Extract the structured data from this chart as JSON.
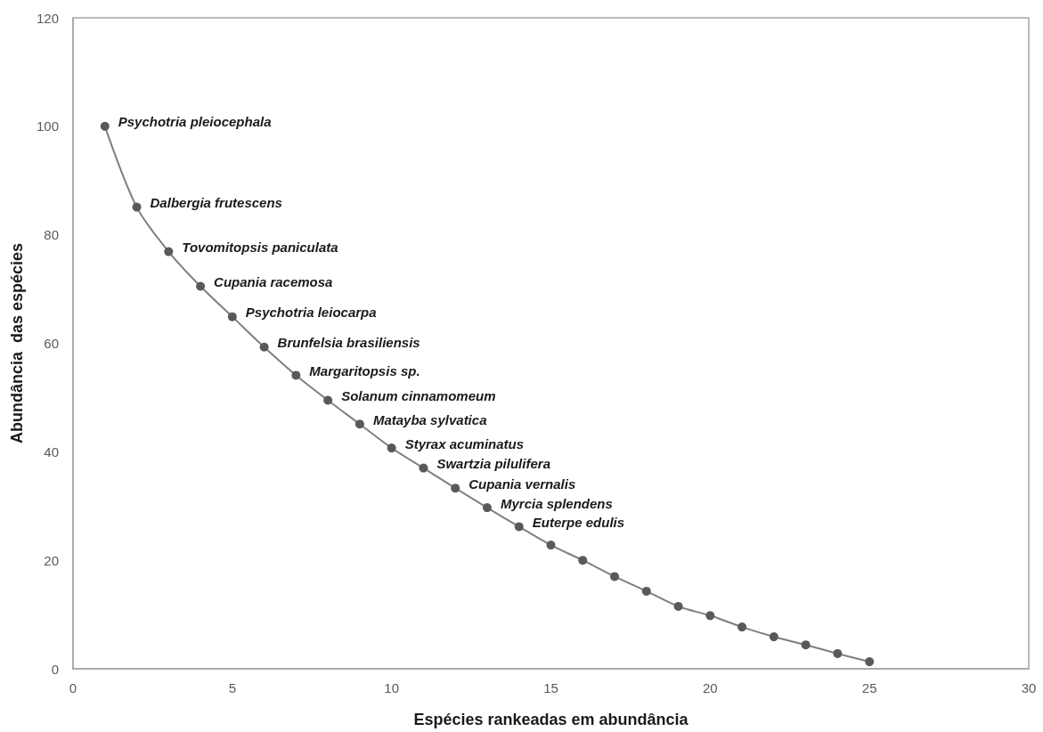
{
  "chart_data": {
    "type": "line",
    "xlabel": "Espécies rankeadas em abundância",
    "ylabel": "Abundância  das espécies",
    "x": [
      1,
      2,
      3,
      4,
      5,
      6,
      7,
      8,
      9,
      10,
      11,
      12,
      13,
      14,
      15,
      16,
      17,
      18,
      19,
      20,
      21,
      22,
      23,
      24,
      25
    ],
    "series": [
      {
        "color": "#595959",
        "values": [
          100,
          85.1,
          76.9,
          70.5,
          64.9,
          59.3,
          54.1,
          49.5,
          45.1,
          40.7,
          37,
          33.3,
          29.7,
          26.2,
          22.8,
          20,
          17,
          14.3,
          11.5,
          9.8,
          7.7,
          5.9,
          4.4,
          2.8,
          1.3
        ]
      }
    ],
    "xlim": [
      0,
      30
    ],
    "xticks": [
      0,
      5,
      10,
      15,
      20,
      25,
      30
    ],
    "ylim": [
      0,
      120
    ],
    "yticks": [
      0,
      20,
      40,
      60,
      80,
      100,
      120
    ],
    "grid": false,
    "marker": "circle",
    "line_style": "solid",
    "annotations": [
      {
        "text": "Psychotria pleiocephala",
        "x": 1,
        "y": 100
      },
      {
        "text": "Dalbergia frutescens",
        "x": 2,
        "y": 85.1
      },
      {
        "text": "Tovomitopsis paniculata",
        "x": 3,
        "y": 76.9
      },
      {
        "text": "Cupania racemosa",
        "x": 4,
        "y": 70.5
      },
      {
        "text": "Psychotria leiocarpa",
        "x": 5,
        "y": 64.9
      },
      {
        "text": "Brunfelsia brasiliensis",
        "x": 6,
        "y": 59.3
      },
      {
        "text": "Margaritopsis sp.",
        "x": 7,
        "y": 54.1
      },
      {
        "text": "Solanum cinnamomeum",
        "x": 8,
        "y": 49.5
      },
      {
        "text": "Matayba sylvatica",
        "x": 9,
        "y": 45.1
      },
      {
        "text": "Styrax acuminatus",
        "x": 10,
        "y": 40.7
      },
      {
        "text": "Swartzia pilulifera",
        "x": 11,
        "y": 37
      },
      {
        "text": "Cupania vernalis",
        "x": 12,
        "y": 33.3
      },
      {
        "text": "Myrcia splendens",
        "x": 13,
        "y": 29.7
      },
      {
        "text": "Euterpe edulis",
        "x": 14,
        "y": 26.2
      }
    ]
  }
}
